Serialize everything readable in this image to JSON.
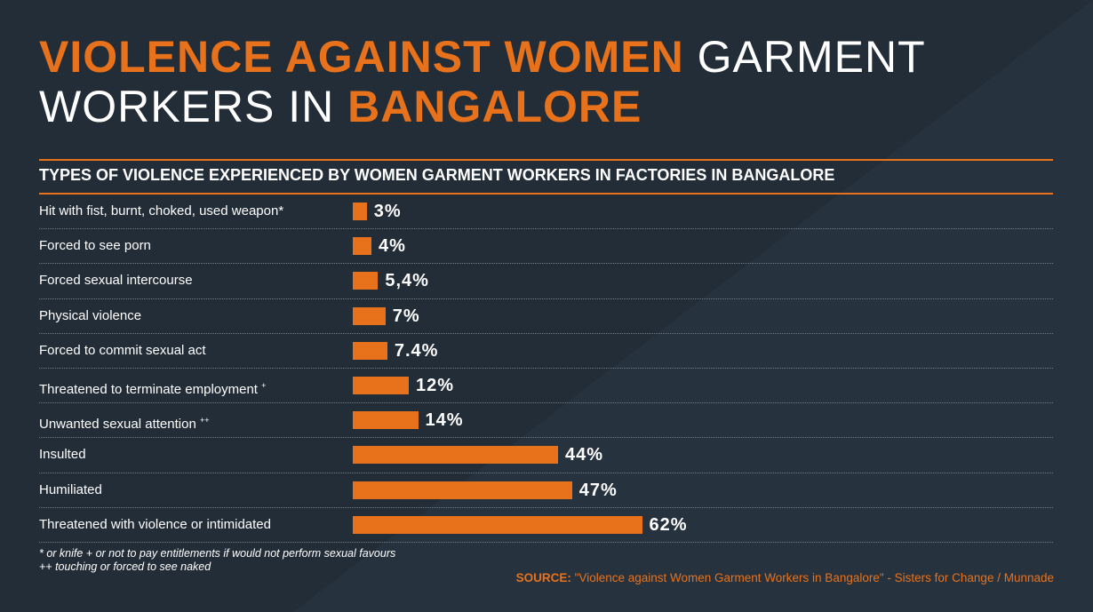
{
  "title": {
    "part1": "VIOLENCE AGAINST WOMEN",
    "part2": " GARMENT WORKERS IN ",
    "part3": "BANGALORE"
  },
  "colors": {
    "background": "#222d38",
    "accent": "#e8721c",
    "text": "#ffffff"
  },
  "chart_data": {
    "type": "bar",
    "orientation": "horizontal",
    "title": "TYPES OF VIOLENCE EXPERIENCED BY WOMEN GARMENT WORKERS IN FACTORIES IN BANGALORE",
    "categories": [
      "Hit with fist, burnt, choked, used weapon",
      "Forced to see porn",
      "Forced sexual intercourse",
      "Physical violence",
      "Forced to commit sexual act",
      "Threatened to terminate employment",
      "Unwanted sexual attention",
      "Insulted",
      "Humiliated",
      "Threatened with violence or intimidated"
    ],
    "markers": [
      "*",
      "",
      "",
      "",
      "",
      "+",
      "++",
      "",
      "",
      ""
    ],
    "values": [
      3,
      4,
      5.4,
      7,
      7.4,
      12,
      14,
      44,
      47,
      62
    ],
    "value_labels": [
      "3%",
      "4%",
      "5,4%",
      "7%",
      "7.4%",
      "12%",
      "14%",
      "44%",
      "47%",
      "62%"
    ],
    "unit": "%",
    "grid": false
  },
  "footnotes": {
    "line1": "* or knife  + or not to pay entitlements if would not perform sexual favours",
    "line2": "++ touching or forced to see naked"
  },
  "source": {
    "label": "SOURCE:",
    "text": " \"Violence against Women Garment Workers in Bangalore\" -  Sisters for Change / Munnade"
  }
}
